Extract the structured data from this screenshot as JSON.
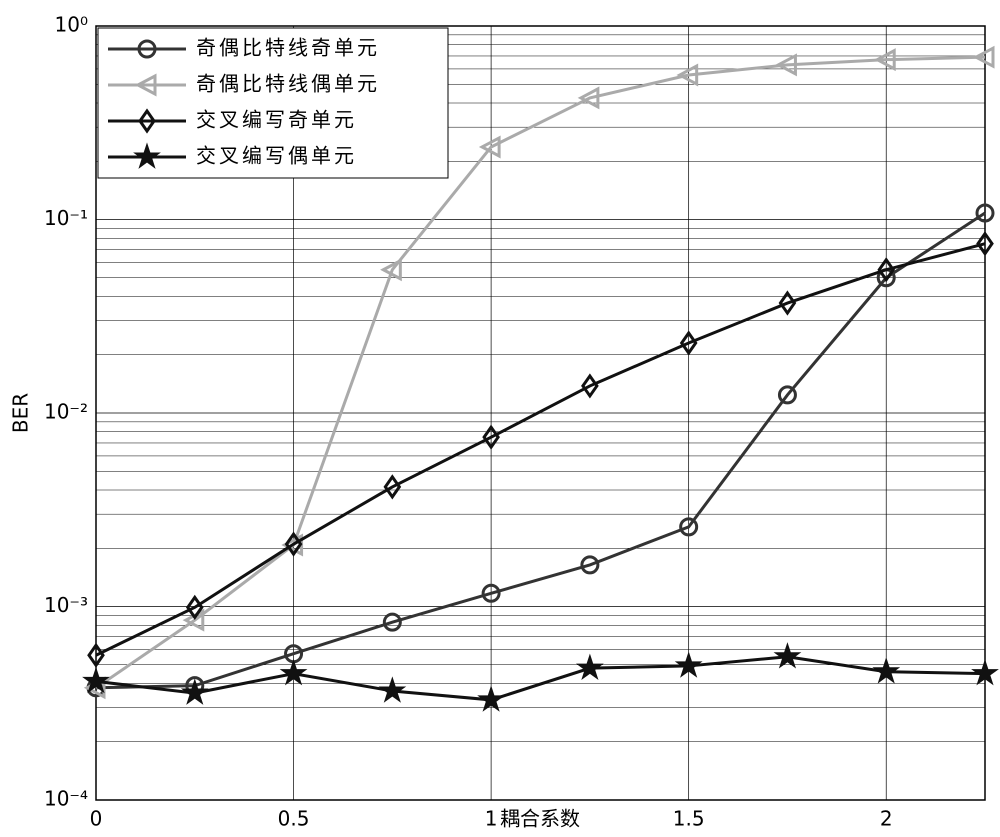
{
  "chart_data": {
    "type": "line",
    "x_label": "耦合系数",
    "y_label": "BER",
    "x": [
      0,
      0.25,
      0.5,
      0.75,
      1,
      1.25,
      1.5,
      1.75,
      2,
      2.25
    ],
    "xlim": [
      0,
      2.25
    ],
    "xticks": [
      0,
      0.5,
      1,
      1.5,
      2
    ],
    "ylim": [
      0.0001,
      1
    ],
    "log_y": true,
    "grid": true,
    "minor_grid": true,
    "yticks": [
      {
        "value": 0.0001,
        "label": "10⁻⁴"
      },
      {
        "value": 0.001,
        "label": "10⁻³"
      },
      {
        "value": 0.01,
        "label": "10⁻²"
      },
      {
        "value": 0.1,
        "label": "10⁻¹"
      },
      {
        "value": 1,
        "label": "10⁰"
      }
    ],
    "legend": "upper left",
    "series": [
      {
        "name": "奇偶比特线奇单元",
        "color": "#333333",
        "marker": "circle",
        "values": [
          0.00038,
          0.00039,
          0.00057,
          0.00083,
          0.00117,
          0.00164,
          0.00258,
          0.0124,
          0.05,
          0.108
        ]
      },
      {
        "name": "奇偶比特线偶单元",
        "color": "#aaaaaa",
        "marker": "triangle-left",
        "values": [
          0.00038,
          0.00085,
          0.00208,
          0.055,
          0.237,
          0.425,
          0.558,
          0.63,
          0.67,
          0.69
        ]
      },
      {
        "name": "交叉编写奇单元",
        "color": "#111111",
        "marker": "diamond",
        "values": [
          0.00056,
          0.00099,
          0.0021,
          0.00415,
          0.0075,
          0.0138,
          0.023,
          0.037,
          0.055,
          0.075
        ]
      },
      {
        "name": "交叉编写偶单元",
        "color": "#111111",
        "marker": "star",
        "values": [
          0.00041,
          0.000357,
          0.00045,
          0.000366,
          0.000329,
          0.00048,
          0.000493,
          0.00055,
          0.00046,
          0.00045
        ]
      }
    ]
  }
}
